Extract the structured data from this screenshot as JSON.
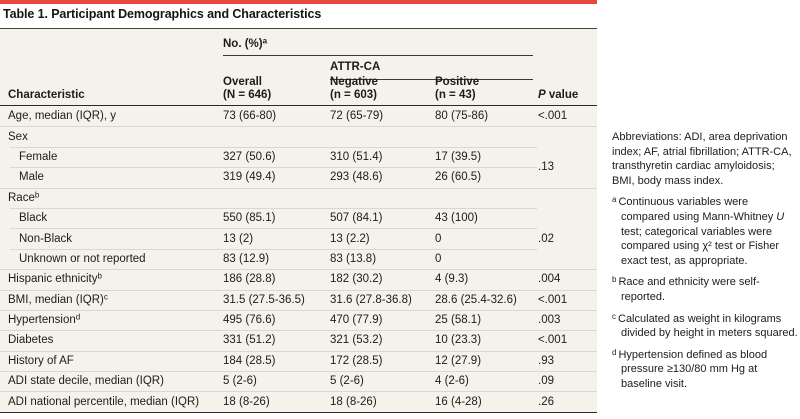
{
  "title": "Table 1. Participant Demographics and Characteristics",
  "colors": {
    "accent_red": "#e8493e",
    "table_bg": "#f4f2ea",
    "row_divider": "#dbd8ca",
    "dark_rule": "#2b2a24"
  },
  "header": {
    "span_no_pct": "No. (%)",
    "span_no_pct_sup": "a",
    "span_attr_ca": "ATTR-CA",
    "characteristic": "Characteristic",
    "overall_line1": "Overall",
    "overall_line2": "(N = 646)",
    "negative_line1": "Negative",
    "negative_line2": "(n = 603)",
    "positive_line1": "Positive",
    "positive_line2": "(n = 43)",
    "p_italic": "P",
    "p_rest": " value"
  },
  "rows": [
    {
      "label": "Age, median (IQR), y",
      "sup": "",
      "overall": "73 (66-80)",
      "negative": "72 (65-79)",
      "positive": "80 (75-86)",
      "p": "<.001"
    },
    {
      "label": "Sex",
      "sup": "",
      "overall": "",
      "negative": "",
      "positive": "",
      "p": ""
    },
    {
      "label": "Female",
      "sup": "",
      "overall": "327 (50.6)",
      "negative": "310 (51.4)",
      "positive": "17 (39.5)",
      "p": ""
    },
    {
      "label": "Male",
      "sup": "",
      "overall": "319 (49.4)",
      "negative": "293 (48.6)",
      "positive": "26 (60.5)",
      "p": ""
    },
    {
      "label": "Race",
      "sup": "b",
      "overall": "",
      "negative": "",
      "positive": "",
      "p": ""
    },
    {
      "label": "Black",
      "sup": "",
      "overall": "550 (85.1)",
      "negative": "507 (84.1)",
      "positive": "43 (100)",
      "p": ""
    },
    {
      "label": "Non-Black",
      "sup": "",
      "overall": "13 (2)",
      "negative": "13 (2.2)",
      "positive": "0",
      "p": ""
    },
    {
      "label": "Unknown or not reported",
      "sup": "",
      "overall": "83 (12.9)",
      "negative": "83 (13.8)",
      "positive": "0",
      "p": ""
    },
    {
      "label": "Hispanic ethnicity",
      "sup": "b",
      "overall": "186 (28.8)",
      "negative": "182 (30.2)",
      "positive": "4 (9.3)",
      "p": ".004"
    },
    {
      "label": "BMI, median (IQR)",
      "sup": "c",
      "overall": "31.5 (27.5-36.5)",
      "negative": "31.6 (27.8-36.8)",
      "positive": "28.6 (25.4-32.6)",
      "p": "<.001"
    },
    {
      "label": "Hypertension",
      "sup": "d",
      "overall": "495 (76.6)",
      "negative": "470 (77.9)",
      "positive": "25 (58.1)",
      "p": ".003"
    },
    {
      "label": "Diabetes",
      "sup": "",
      "overall": "331 (51.2)",
      "negative": "321 (53.2)",
      "positive": "10 (23.3)",
      "p": "<.001"
    },
    {
      "label": "History of AF",
      "sup": "",
      "overall": "184 (28.5)",
      "negative": "172 (28.5)",
      "positive": "12 (27.9)",
      "p": ".93"
    },
    {
      "label": "ADI state decile, median (IQR)",
      "sup": "",
      "overall": "5 (2-6)",
      "negative": "5 (2-6)",
      "positive": "4 (2-6)",
      "p": ".09"
    },
    {
      "label": "ADI national percentile, median (IQR)",
      "sup": "",
      "overall": "18 (8-26)",
      "negative": "18 (8-26)",
      "positive": "16 (4-28)",
      "p": ".26"
    }
  ],
  "merged_p": {
    "sex": ".13",
    "race": ".02"
  },
  "notes": {
    "abbreviations": "Abbreviations: ADI, area deprivation index; AF, atrial fibrillation; ATTR-CA, transthyretin cardiac amyloidosis; BMI, body mass index.",
    "footnotes": [
      {
        "marker": "a",
        "pre": "Continuous variables were compared using Mann-Whitney ",
        "italic": "U",
        "post": " test; categorical variables were compared using χ² test or Fisher exact test, as appropriate."
      },
      {
        "marker": "b",
        "pre": "Race and ethnicity were self-reported.",
        "italic": "",
        "post": ""
      },
      {
        "marker": "c",
        "pre": "Calculated as weight in kilograms divided by height in meters squared.",
        "italic": "",
        "post": ""
      },
      {
        "marker": "d",
        "pre": "Hypertension defined as blood pressure ≥130/80 mm Hg at baseline visit.",
        "italic": "",
        "post": ""
      }
    ]
  }
}
